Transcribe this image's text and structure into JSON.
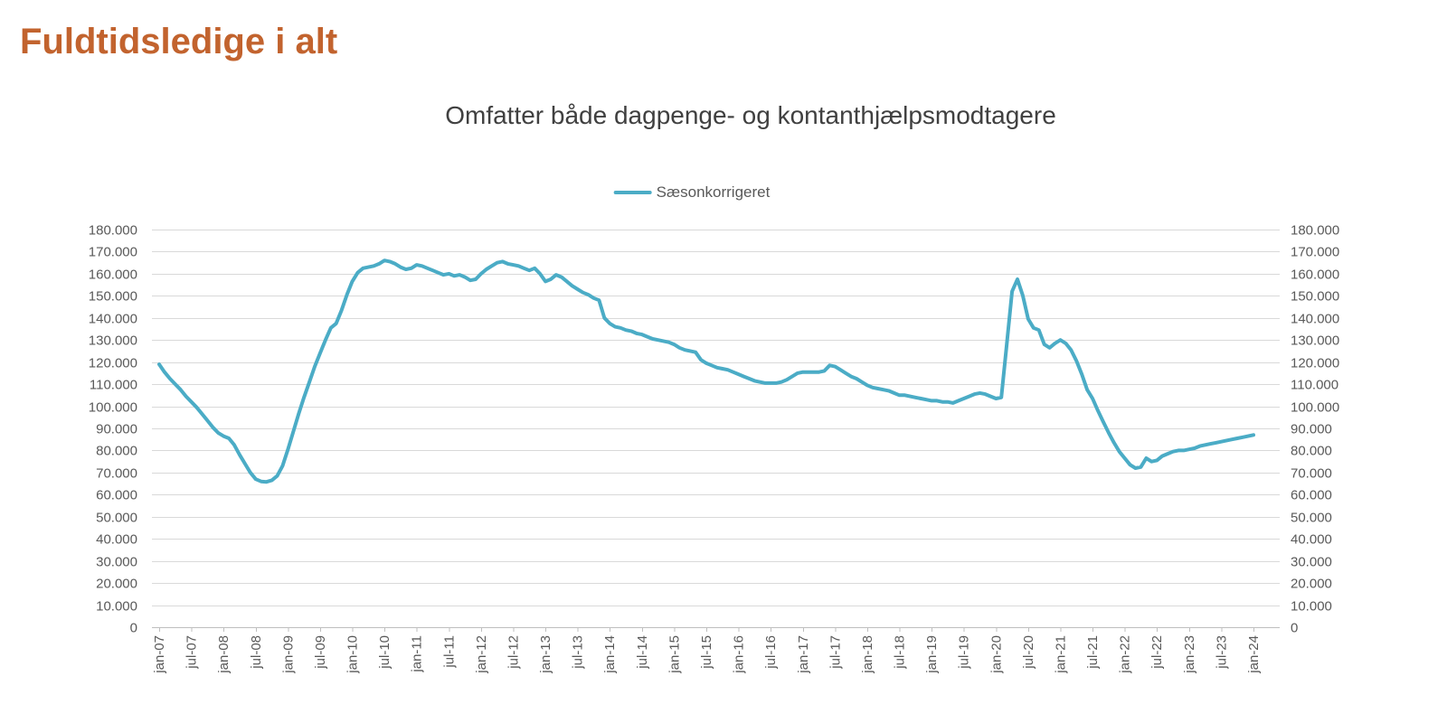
{
  "page": {
    "title": "Fuldtidsledige i alt",
    "title_color": "#C2632E",
    "background_color": "#FFFFFF"
  },
  "chart_data": {
    "type": "line",
    "title": "Omfatter både dagpenge- og kontanthjælpsmodtagere",
    "legend_position": "top",
    "grid": "horizontal",
    "grid_color": "#D9D9D9",
    "axis_color": "#BFBFBF",
    "axis_text_color": "#595959",
    "ylim": [
      0,
      180000
    ],
    "y_tick_step": 10000,
    "y_tick_labels": [
      "0",
      "10.000",
      "20.000",
      "30.000",
      "40.000",
      "50.000",
      "60.000",
      "70.000",
      "80.000",
      "90.000",
      "100.000",
      "110.000",
      "120.000",
      "130.000",
      "140.000",
      "150.000",
      "160.000",
      "170.000",
      "180.000"
    ],
    "x_unit": "month",
    "x_range": "jan-07 to jan-24, monthly (205 points)",
    "x_tick_labels": [
      "jan-07",
      "jul-07",
      "jan-08",
      "jul-08",
      "jan-09",
      "jul-09",
      "jan-10",
      "jul-10",
      "jan-11",
      "jul-11",
      "jan-12",
      "jul-12",
      "jan-13",
      "jul-13",
      "jan-14",
      "jul-14",
      "jan-15",
      "jul-15",
      "jan-16",
      "jul-16",
      "jan-17",
      "jul-17",
      "jan-18",
      "jul-18",
      "jan-19",
      "jul-19",
      "jan-20",
      "jul-20",
      "jan-21",
      "jul-21",
      "jan-22",
      "jul-22",
      "jan-23",
      "jul-23",
      "jan-24"
    ],
    "x_tick_every_n_points": 6,
    "series": [
      {
        "name": "Sæsonkorrigeret",
        "color": "#4BACC6",
        "values": [
          119000,
          115500,
          112500,
          110000,
          107500,
          104500,
          102000,
          99500,
          96500,
          93500,
          90500,
          88000,
          86500,
          85500,
          82500,
          78000,
          74000,
          70000,
          67000,
          66000,
          65800,
          66500,
          68500,
          73000,
          80500,
          88500,
          96500,
          104000,
          111000,
          118000,
          124000,
          130000,
          135500,
          137500,
          143500,
          150500,
          156500,
          160500,
          162500,
          163000,
          163500,
          164500,
          166000,
          165500,
          164500,
          163000,
          162000,
          162500,
          164000,
          163500,
          162500,
          161500,
          160500,
          159500,
          160000,
          159000,
          159500,
          158500,
          157000,
          157500,
          160000,
          162000,
          163500,
          165000,
          165500,
          164500,
          164000,
          163500,
          162500,
          161500,
          162500,
          160000,
          156500,
          157500,
          159500,
          158500,
          156500,
          154500,
          153000,
          151500,
          150500,
          149000,
          148000,
          140000,
          137500,
          136000,
          135500,
          134500,
          134000,
          133000,
          132500,
          131500,
          130500,
          130000,
          129500,
          129000,
          128000,
          126500,
          125500,
          125000,
          124500,
          121000,
          119500,
          118500,
          117500,
          117000,
          116500,
          115500,
          114500,
          113500,
          112500,
          111500,
          111000,
          110500,
          110500,
          110500,
          111000,
          112000,
          113500,
          115000,
          115500,
          115500,
          115500,
          115500,
          116000,
          118500,
          118000,
          116500,
          115000,
          113500,
          112500,
          111000,
          109500,
          108500,
          108000,
          107500,
          107000,
          106000,
          105000,
          105000,
          104500,
          104000,
          103500,
          103000,
          102500,
          102500,
          102000,
          102000,
          101500,
          102500,
          103500,
          104500,
          105500,
          106000,
          105500,
          104500,
          103500,
          104000,
          128000,
          152000,
          157500,
          150000,
          139500,
          135500,
          134500,
          128000,
          126500,
          128500,
          130000,
          128500,
          125500,
          120500,
          114500,
          107500,
          103500,
          98000,
          93000,
          88000,
          83500,
          79500,
          76500,
          73500,
          72000,
          72500,
          76500,
          75000,
          75500,
          77500,
          78500,
          79500,
          80000,
          80000,
          80500,
          81000,
          82000,
          82500,
          83000,
          83500,
          84000,
          84500,
          85000,
          85500,
          86000,
          86500,
          87000
        ]
      }
    ]
  }
}
